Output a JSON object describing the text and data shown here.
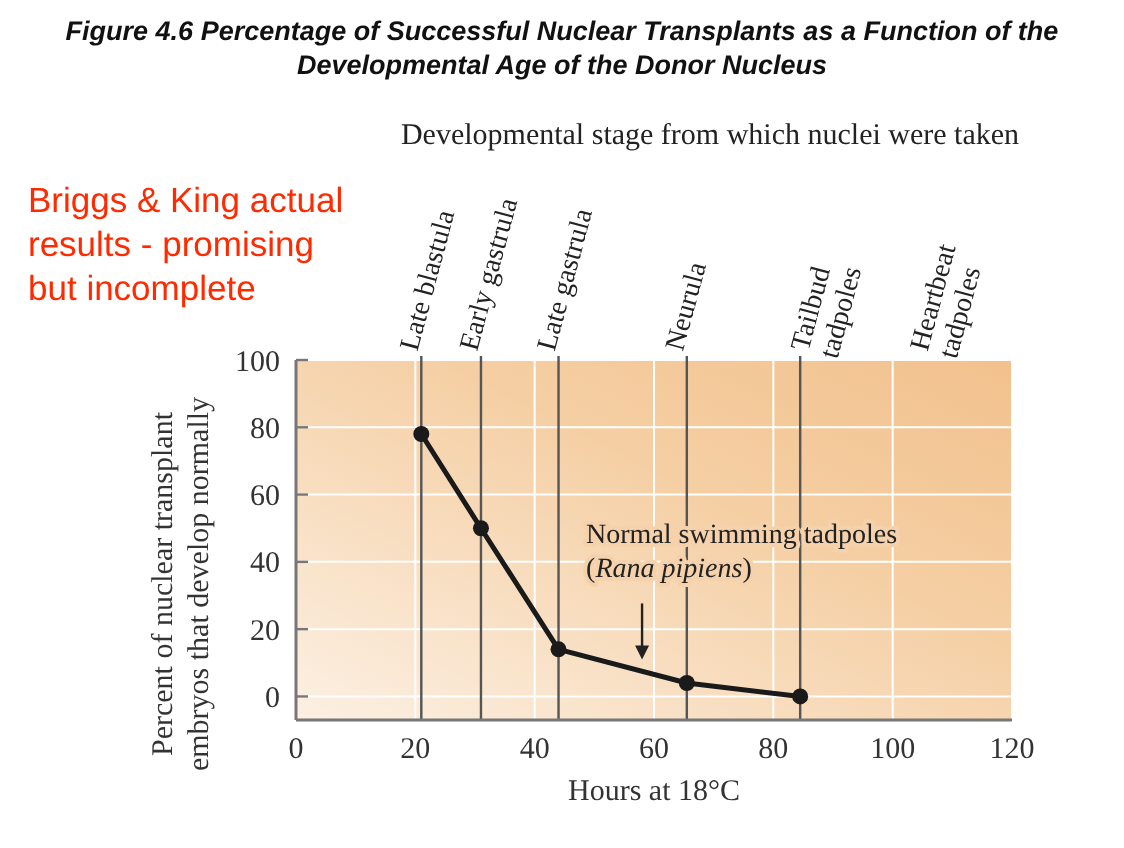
{
  "chart_data": {
    "type": "line",
    "title": "Figure 4.6 Percentage of Successful Nuclear Transplants as a Function of the Developmental Age of the Donor Nucleus",
    "subtitle": "Developmental stage from which nuclei were taken",
    "xlabel": "Hours at 18°C",
    "ylabel": "Percent of nuclear transplant embryos that develop normally",
    "annotations": [
      "Briggs & King actual results - promising but incomplete",
      {
        "text": "Normal swimming tadpoles (Rana pipiens)",
        "x": 58,
        "y": 11
      },
      "Heartbeat tadpoles"
    ],
    "x": [
      21,
      31,
      44,
      65.5,
      84.5
    ],
    "values": [
      78,
      50,
      14,
      4,
      0
    ],
    "color": "#1a1a1a",
    "marker": "circle",
    "xlim": [
      0,
      120
    ],
    "ylim": [
      -7,
      100
    ],
    "xticks": [
      0,
      20,
      40,
      60,
      80,
      100,
      120
    ],
    "yticks": [
      0,
      20,
      40,
      60,
      80,
      100
    ],
    "grid": true,
    "ref_lines": [
      {
        "axis": "x",
        "value": 21,
        "label": "Late blastula",
        "color": "#555555"
      },
      {
        "axis": "x",
        "value": 31,
        "label": "Early gastrula",
        "color": "#555555"
      },
      {
        "axis": "x",
        "value": 44,
        "label": "Late gastrula",
        "color": "#555555"
      },
      {
        "axis": "x",
        "value": 65.5,
        "label": "Neurula",
        "color": "#555555"
      },
      {
        "axis": "x",
        "value": 84.5,
        "label": "Tailbud tadpoles",
        "color": "#555555"
      }
    ]
  }
}
